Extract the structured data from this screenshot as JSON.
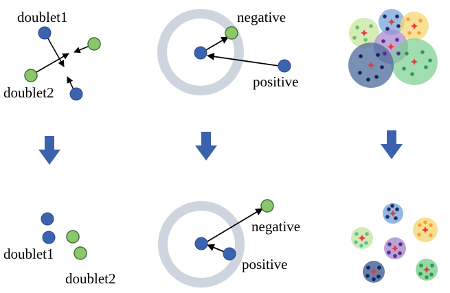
{
  "panels": {
    "top_left": {
      "label_a": "doublet1",
      "label_b": "doublet2"
    },
    "top_middle": {
      "label_neg": "negative",
      "label_pos": "positive"
    },
    "bottom_left": {
      "label_a": "doublet1",
      "label_b": "doublet2"
    },
    "bottom_middle": {
      "label_neg": "negative",
      "label_pos": "positive"
    }
  },
  "colors": {
    "blue_node": "#3b63b0",
    "green_node": "#8cc86a",
    "ring": "#cfd5df",
    "arrow_down": "#3a62ae",
    "star": "#e63b3b"
  }
}
